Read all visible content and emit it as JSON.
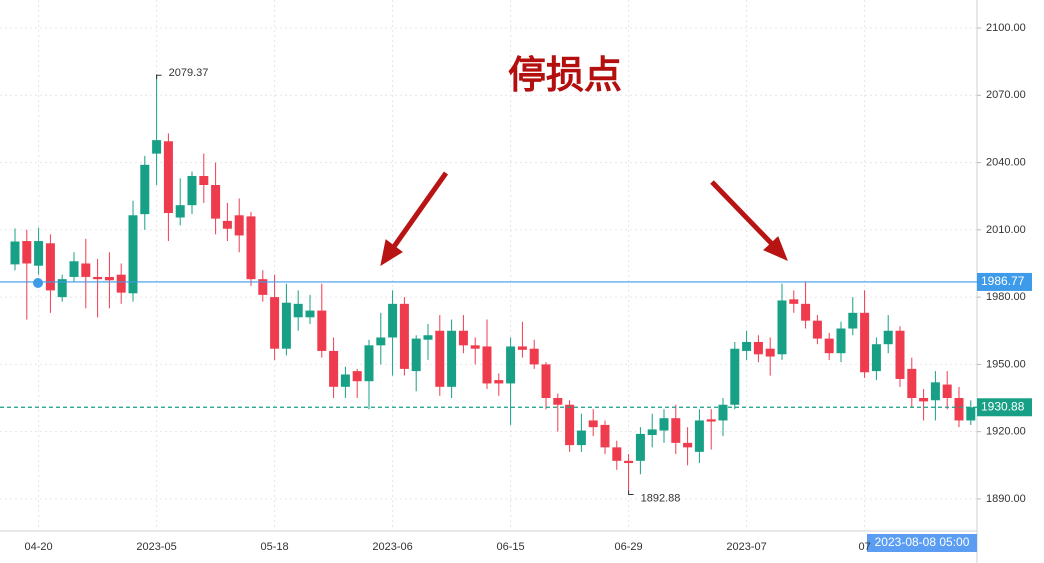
{
  "chart_data": {
    "type": "candlestick",
    "annotation": "停损点",
    "crosshair_label": "2023-08-08 05:00",
    "up_color": "#17a086",
    "down_color": "#ef3b4e",
    "grid": true,
    "categories": [
      null,
      null,
      "04-20",
      null,
      null,
      null,
      null,
      null,
      null,
      null,
      null,
      null,
      "2023-05",
      null,
      null,
      null,
      null,
      null,
      null,
      null,
      null,
      null,
      "05-18",
      null,
      null,
      null,
      null,
      null,
      null,
      null,
      null,
      null,
      "2023-06",
      null,
      null,
      null,
      null,
      null,
      null,
      null,
      null,
      null,
      "06-15",
      null,
      null,
      null,
      null,
      null,
      null,
      null,
      null,
      null,
      "06-29",
      null,
      null,
      null,
      null,
      null,
      null,
      null,
      null,
      null,
      "2023-07",
      null,
      null,
      null,
      null,
      null,
      null,
      null,
      null,
      null,
      "07",
      null,
      null,
      null,
      null,
      null,
      null,
      null,
      null,
      null
    ],
    "open": [
      1994.6,
      2005,
      1994,
      2004,
      1980,
      1989,
      1995,
      1989,
      1989,
      1990,
      1981.7,
      2017,
      2044,
      2049.5,
      2015.5,
      2021,
      2034,
      2030,
      2014,
      2016.5,
      2016,
      1988,
      1980,
      1957,
      1971,
      1971,
      1974,
      1956,
      1940,
      1947,
      1942.5,
      1958.5,
      1962,
      1977,
      1947,
      1961,
      1965,
      1940,
      1965,
      1958.5,
      1958,
      1943,
      1941.5,
      1958,
      1957,
      1950,
      1935,
      1932,
      1914,
      1925,
      1923,
      1913,
      1907,
      1907,
      1918.5,
      1920.5,
      1926,
      1915,
      1911,
      1925.5,
      1925,
      1932,
      1956,
      1960,
      1957,
      1954.5,
      1979,
      1977,
      1969.5,
      1961.5,
      1955,
      1966,
      1973,
      1947,
      1959,
      1965,
      1948,
      1935,
      1934,
      1941,
      1935,
      1925
    ],
    "high": [
      2010.6,
      2010,
      2011,
      2008,
      1990,
      2000,
      2006,
      1997,
      2000,
      1995,
      2023,
      2043,
      2079.37,
      2053,
      2033,
      2036,
      2044,
      2040,
      2022,
      2024,
      2018,
      1992,
      1990,
      1986,
      1983,
      1981,
      1986,
      1962,
      1949,
      1948,
      1961,
      1973,
      1983,
      1980,
      1963,
      1968,
      1972,
      1970,
      1972,
      1962,
      1970,
      1946,
      1962,
      1969,
      1961,
      1951,
      1937,
      1934,
      1928,
      1930,
      1925,
      1916,
      1910,
      1922,
      1928,
      1930,
      1932,
      1922,
      1930,
      1930,
      1935,
      1960,
      1965,
      1963,
      1962,
      1986,
      1983,
      1987,
      1972,
      1964,
      1969,
      1980,
      1983,
      1962,
      1972,
      1967,
      1953,
      1939,
      1947,
      1947,
      1940,
      1934
    ],
    "low": [
      1991.9,
      1970,
      1990,
      1973,
      1978,
      1987,
      1975,
      1971,
      1975,
      1977,
      1978,
      2010,
      2030,
      2005,
      2012,
      2017,
      2022,
      2008,
      2005,
      2000,
      1985,
      1978,
      1952,
      1954,
      1965,
      1968,
      1953,
      1935,
      1935,
      1935,
      1930,
      1950,
      1945,
      1945,
      1938,
      1952,
      1936,
      1935,
      1955,
      1950,
      1939,
      1936,
      1923,
      1953,
      1948,
      1930,
      1920,
      1911,
      1911,
      1918,
      1910,
      1903,
      1892.88,
      1901,
      1913,
      1915,
      1910,
      1905,
      1906,
      1912,
      1918,
      1930,
      1952,
      1951,
      1945,
      1952,
      1973,
      1966,
      1959,
      1952,
      1951,
      1963,
      1944,
      1943,
      1955,
      1940,
      1931,
      1925,
      1925,
      1930,
      1922,
      1923
    ],
    "close": [
      2004.8,
      1995,
      2005,
      1983,
      1988,
      1996,
      1989,
      1988,
      1987.5,
      1982,
      2016.5,
      2039,
      2050,
      2017.5,
      2021,
      2034,
      2030,
      2015,
      2010.5,
      2007.5,
      1988,
      1981,
      1957,
      1977.5,
      1977,
      1974,
      1956,
      1940,
      1945.5,
      1942.5,
      1958.5,
      1962,
      1977,
      1948,
      1961.5,
      1963,
      1940,
      1965,
      1958.5,
      1957,
      1941.5,
      1941.5,
      1958,
      1956.5,
      1950,
      1935,
      1932,
      1914,
      1920.5,
      1922,
      1913,
      1907,
      1906,
      1919,
      1921,
      1926,
      1915,
      1913,
      1925,
      1924.5,
      1932,
      1957,
      1960,
      1954.5,
      1953.5,
      1978.5,
      1977,
      1969.5,
      1961.5,
      1955,
      1966,
      1973,
      1946.5,
      1959,
      1965,
      1943.5,
      1935,
      1933.5,
      1942,
      1935,
      1925,
      1930.88
    ],
    "price_lines": [
      {
        "value": 1986.77,
        "color": "#3d9be9",
        "style": "solid"
      },
      {
        "value": 1930.88,
        "color": "#17a086",
        "style": "dashed"
      }
    ],
    "ylim": [
      1875.7,
      2112.5
    ],
    "yticks": [
      {
        "value": 1890,
        "label": "1890.00"
      },
      {
        "value": 1920,
        "label": "1920.00"
      },
      {
        "value": 1950,
        "label": "1950.00"
      },
      {
        "value": 1980,
        "label": "1980.00"
      },
      {
        "value": 2010,
        "label": "2010.00"
      },
      {
        "value": 2040,
        "label": "2040.00"
      },
      {
        "value": 2070,
        "label": "2070.00"
      },
      {
        "value": 2100,
        "label": "2100.00"
      }
    ]
  }
}
